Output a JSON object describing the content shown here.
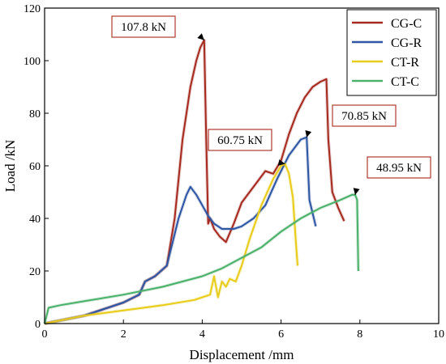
{
  "chart_data": {
    "type": "line",
    "xlabel": "Displacement /mm",
    "ylabel": "Load /kN",
    "xlim": [
      0,
      10
    ],
    "ylim": [
      0,
      120
    ],
    "xticks": [
      0,
      2,
      4,
      6,
      8,
      10
    ],
    "yticks": [
      0,
      20,
      40,
      60,
      80,
      100,
      120
    ],
    "grid": false,
    "legend_position": "top-right",
    "series": [
      {
        "name": "CG-C",
        "color": "#a52a1f",
        "x": [
          0,
          1.0,
          2.0,
          2.4,
          2.55,
          2.8,
          3.1,
          3.3,
          3.5,
          3.7,
          3.85,
          3.95,
          4.05,
          4.1,
          4.15,
          4.2,
          4.3,
          4.45,
          4.6,
          4.8,
          5.0,
          5.3,
          5.6,
          5.8,
          6.0,
          6.2,
          6.4,
          6.6,
          6.8,
          7.0,
          7.15,
          7.2,
          7.3,
          7.45,
          7.6
        ],
        "y": [
          0,
          3,
          8,
          11,
          16,
          18,
          22,
          40,
          70,
          90,
          100,
          105,
          107.8,
          70,
          38,
          40,
          36,
          33,
          31,
          38,
          46,
          52,
          58,
          57,
          62,
          72,
          80,
          86,
          90,
          92,
          93,
          70,
          50,
          44,
          39
        ]
      },
      {
        "name": "CG-R",
        "color": "#2f56a3",
        "x": [
          0,
          1.0,
          2.0,
          2.4,
          2.55,
          2.8,
          3.1,
          3.4,
          3.6,
          3.7,
          3.85,
          4.0,
          4.15,
          4.3,
          4.5,
          4.8,
          5.0,
          5.3,
          5.6,
          5.9,
          6.2,
          6.5,
          6.65,
          6.72,
          6.8,
          6.88
        ],
        "y": [
          0,
          3,
          8,
          11,
          16,
          18,
          22,
          40,
          49,
          52,
          49,
          45,
          41,
          38,
          36,
          36,
          37,
          40,
          45,
          55,
          64,
          70,
          70.85,
          47,
          42,
          37
        ]
      },
      {
        "name": "CT-R",
        "color": "#e8cc1a",
        "x": [
          0,
          1.0,
          2.0,
          3.0,
          3.8,
          4.2,
          4.3,
          4.4,
          4.5,
          4.6,
          4.7,
          4.85,
          5.0,
          5.2,
          5.5,
          5.8,
          6.0,
          6.1,
          6.2,
          6.3,
          6.38,
          6.42
        ],
        "y": [
          0,
          3,
          5,
          7,
          9,
          11,
          18,
          10,
          16,
          14,
          17,
          16,
          22,
          32,
          45,
          55,
          60,
          60.75,
          57,
          48,
          30,
          22
        ]
      },
      {
        "name": "CT-C",
        "color": "#4ab06a",
        "x": [
          0,
          0.1,
          0.4,
          1.0,
          2.0,
          3.0,
          4.0,
          4.5,
          5.0,
          5.5,
          6.0,
          6.5,
          7.0,
          7.5,
          7.8,
          7.88,
          7.93,
          7.96
        ],
        "y": [
          0,
          6,
          7,
          8.5,
          11,
          14,
          18,
          21,
          25,
          29,
          35,
          40,
          44,
          47,
          49,
          48.95,
          47,
          20
        ]
      }
    ],
    "annotations": [
      {
        "text": "107.8 kN",
        "x": 4.05,
        "y": 107.8
      },
      {
        "text": "70.85 kN",
        "x": 6.65,
        "y": 70.85
      },
      {
        "text": "60.75 kN",
        "x": 6.1,
        "y": 60.75
      },
      {
        "text": "48.95 kN",
        "x": 7.88,
        "y": 48.95
      }
    ]
  }
}
